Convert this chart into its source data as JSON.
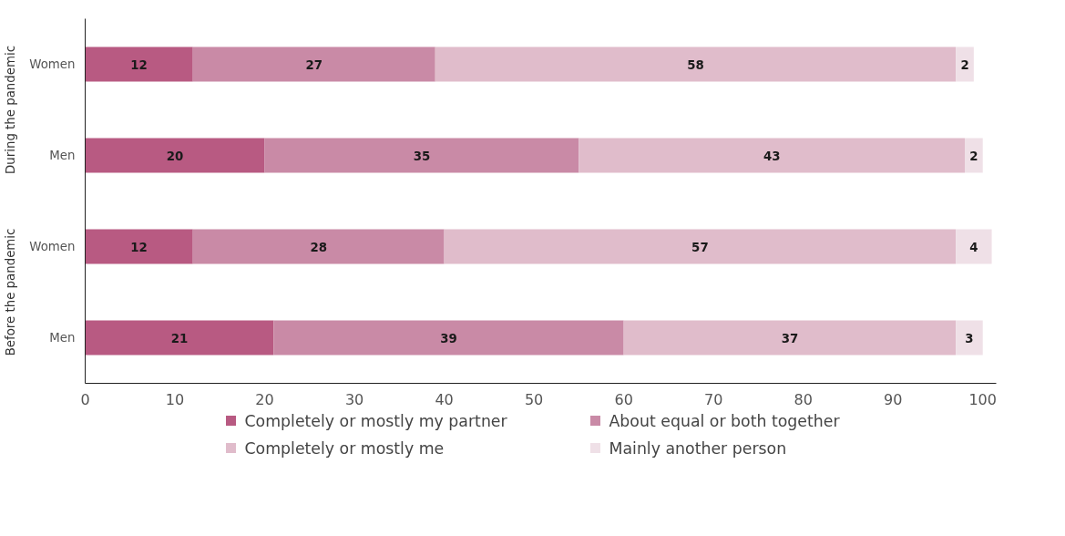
{
  "chart_data": {
    "type": "bar",
    "orientation": "horizontal",
    "stacked": true,
    "data_labels": true,
    "legend": "bottom",
    "grid": false,
    "categories": [
      "Women",
      "Men",
      "Women",
      "Men"
    ],
    "annotations": [
      "During the pandemic",
      "Before the pandemic"
    ],
    "xlim": [
      0,
      101.5
    ],
    "xticks": [
      0,
      10,
      20,
      30,
      40,
      50,
      60,
      70,
      80,
      90,
      100
    ],
    "series": [
      {
        "name": "Completely or mostly my partner",
        "color": "#b85a82",
        "values": [
          12,
          20,
          12,
          21
        ]
      },
      {
        "name": "About equal or both together",
        "color": "#c98aa6",
        "values": [
          27,
          35,
          28,
          39
        ]
      },
      {
        "name": "Completely or mostly me",
        "color": "#e0bccb",
        "values": [
          58,
          43,
          57,
          37
        ]
      },
      {
        "name": "Mainly another person",
        "color": "#efe0e7",
        "values": [
          2,
          2,
          4,
          3
        ]
      }
    ]
  }
}
